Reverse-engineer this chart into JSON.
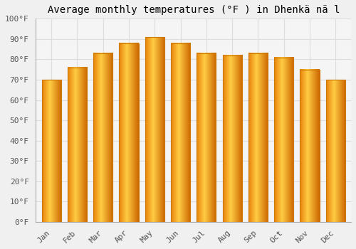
{
  "title": "Average monthly temperatures (°F ) in Dhenkä nä l",
  "months": [
    "Jan",
    "Feb",
    "Mar",
    "Apr",
    "May",
    "Jun",
    "Jul",
    "Aug",
    "Sep",
    "Oct",
    "Nov",
    "Dec"
  ],
  "values": [
    70,
    76,
    83,
    88,
    91,
    88,
    83,
    82,
    83,
    81,
    75,
    70
  ],
  "bar_color_left": "#E8820A",
  "bar_color_center": "#FFCC44",
  "bar_color_right": "#E8820A",
  "background_color": "#F0F0F0",
  "plot_bg_color": "#F5F5F5",
  "grid_color": "#DDDDDD",
  "ylim": [
    0,
    100
  ],
  "yticks": [
    0,
    10,
    20,
    30,
    40,
    50,
    60,
    70,
    80,
    90,
    100
  ],
  "ytick_labels": [
    "0°F",
    "10°F",
    "20°F",
    "30°F",
    "40°F",
    "50°F",
    "60°F",
    "70°F",
    "80°F",
    "90°F",
    "100°F"
  ],
  "title_fontsize": 10,
  "tick_fontsize": 8,
  "font_family": "monospace",
  "bar_width": 0.75
}
